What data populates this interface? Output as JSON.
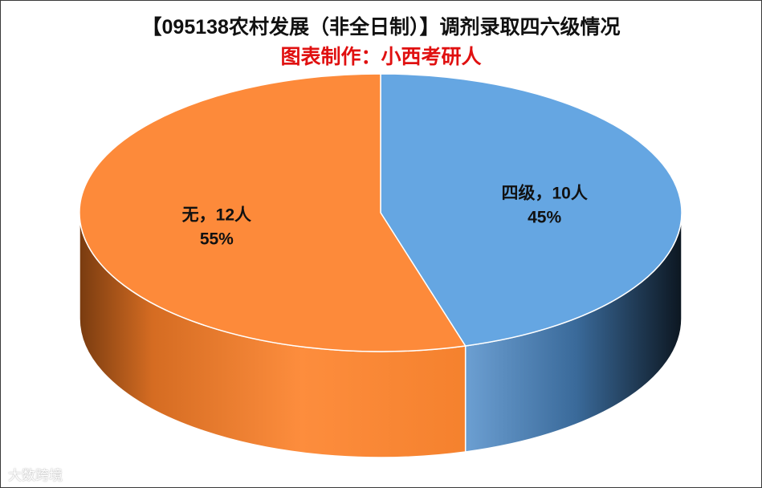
{
  "chart_data": {
    "type": "pie",
    "title": "【095138农村发展（非全日制）】调剂录取四六级情况",
    "subtitle": "图表制作：小西考研人",
    "slices": [
      {
        "label": "四级",
        "value": 10,
        "unit": "人",
        "percent": "45%",
        "color": "#65a6e2",
        "display": "四级，10人"
      },
      {
        "label": "无",
        "value": 12,
        "unit": "人",
        "percent": "55%",
        "color": "#fd8a3a",
        "display": "无，12人"
      }
    ],
    "style": "3d",
    "legend": "none"
  },
  "watermark": "大数跨境"
}
